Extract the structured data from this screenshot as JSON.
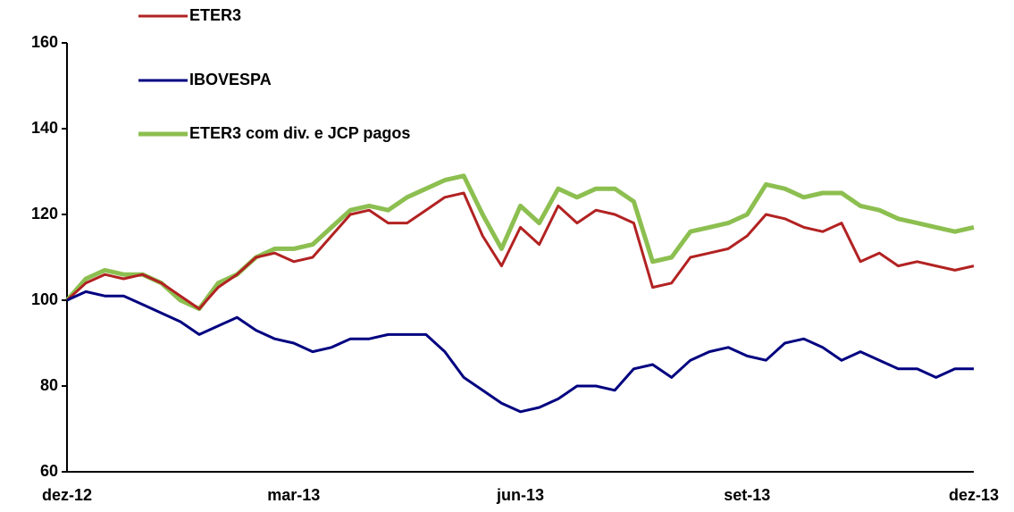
{
  "chart_data": {
    "type": "line",
    "categories": [
      "dez-12",
      null,
      null,
      null,
      null,
      null,
      null,
      null,
      null,
      null,
      null,
      null,
      "mar-13",
      null,
      null,
      null,
      null,
      null,
      null,
      null,
      null,
      null,
      null,
      null,
      "jun-13",
      null,
      null,
      null,
      null,
      null,
      null,
      null,
      null,
      null,
      null,
      null,
      "set-13",
      null,
      null,
      null,
      null,
      null,
      null,
      null,
      null,
      null,
      null,
      null,
      "dez-13"
    ],
    "series": [
      {
        "name": "ETER3",
        "color": "#b22222",
        "values": [
          100,
          104,
          106,
          105,
          106,
          104,
          101,
          98,
          103,
          106,
          110,
          111,
          109,
          110,
          115,
          120,
          121,
          118,
          118,
          121,
          124,
          125,
          115,
          108,
          117,
          113,
          122,
          118,
          121,
          120,
          118,
          103,
          104,
          110,
          111,
          112,
          115,
          120,
          119,
          117,
          116,
          118,
          109,
          111,
          108,
          109,
          108,
          107,
          108
        ]
      },
      {
        "name": "IBOVESPA",
        "color": "#000080",
        "values": [
          100,
          102,
          101,
          101,
          99,
          97,
          95,
          92,
          94,
          96,
          93,
          91,
          90,
          88,
          89,
          91,
          91,
          92,
          92,
          92,
          88,
          82,
          79,
          76,
          74,
          75,
          77,
          80,
          80,
          79,
          84,
          85,
          82,
          86,
          88,
          89,
          87,
          86,
          90,
          91,
          89,
          86,
          88,
          86,
          84,
          84,
          82,
          84,
          84
        ]
      },
      {
        "name": "ETER3 com div. e JCP pagos",
        "color": "#8cbf50",
        "values": [
          100,
          105,
          107,
          106,
          106,
          104,
          100,
          98,
          104,
          106,
          110,
          112,
          112,
          113,
          117,
          121,
          122,
          121,
          124,
          126,
          128,
          129,
          120,
          112,
          122,
          118,
          126,
          124,
          126,
          126,
          123,
          109,
          110,
          116,
          117,
          118,
          120,
          127,
          126,
          124,
          125,
          125,
          122,
          121,
          119,
          118,
          117,
          116,
          117
        ]
      }
    ],
    "ylim": [
      60,
      160
    ],
    "yticks": [
      60,
      80,
      100,
      120,
      140,
      160
    ],
    "legend": "upper left",
    "grid": false
  }
}
